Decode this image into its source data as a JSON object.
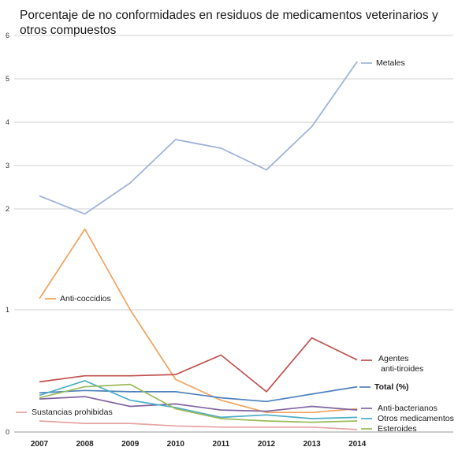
{
  "chart_data": {
    "type": "line",
    "title": "Porcentaje de no conformidades en residuos de medicamentos veterinarios y otros compuestos",
    "xlabel": "",
    "ylabel": "",
    "x": [
      "2007",
      "2008",
      "2009",
      "2010",
      "2011",
      "2012",
      "2013",
      "2014"
    ],
    "yticks": [
      0,
      1,
      2,
      3,
      4,
      5,
      6
    ],
    "ylim": [
      0,
      6
    ],
    "y_scale": "piecewise: 0-1 and 1-2 compressed, 2-6 linear",
    "grid": true,
    "series": [
      {
        "name": "Metales",
        "color": "#9fb3d9",
        "values": [
          2.3,
          1.95,
          2.6,
          3.6,
          3.4,
          2.9,
          3.9,
          5.4
        ]
      },
      {
        "name": "Anti-coccidios",
        "color": "#f0a35e",
        "values": [
          1.11,
          1.8,
          1.0,
          0.43,
          0.26,
          0.16,
          0.16,
          0.19
        ]
      },
      {
        "name": "Agentes\nanti-tiroides",
        "color": "#c0504d",
        "values": [
          0.41,
          0.46,
          0.46,
          0.47,
          0.63,
          0.33,
          0.77,
          0.59
        ]
      },
      {
        "name": "Total (%)",
        "color": "#4f81bd",
        "values": [
          0.32,
          0.34,
          0.33,
          0.33,
          0.28,
          0.25,
          0.31,
          0.37
        ]
      },
      {
        "name": "Anti-bacterianos",
        "color": "#8064a2",
        "values": [
          0.27,
          0.29,
          0.21,
          0.23,
          0.18,
          0.17,
          0.21,
          0.18
        ]
      },
      {
        "name": "Otros medicamentos",
        "color": "#4bacc6",
        "values": [
          0.3,
          0.42,
          0.26,
          0.2,
          0.12,
          0.14,
          0.11,
          0.12
        ]
      },
      {
        "name": "Esteroides",
        "color": "#9bbb59",
        "values": [
          0.28,
          0.37,
          0.39,
          0.19,
          0.11,
          0.09,
          0.08,
          0.09
        ]
      },
      {
        "name": "Sustancias prohibidas",
        "color": "#e6a3a3",
        "values": [
          0.09,
          0.07,
          0.07,
          0.05,
          0.04,
          0.04,
          0.04,
          0.02
        ]
      }
    ]
  }
}
